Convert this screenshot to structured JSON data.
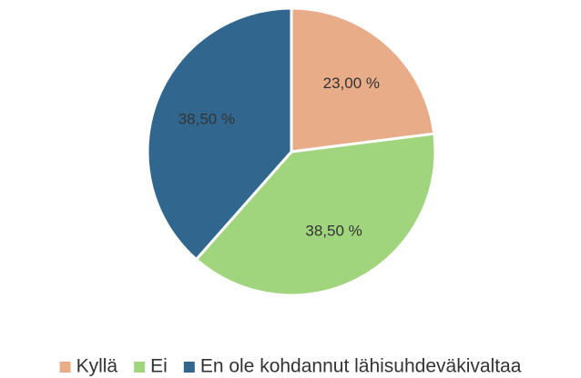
{
  "chart_data": {
    "type": "pie",
    "categories": [
      "Kyllä",
      "Ei",
      "En ole kohdannut lähisuhdeväkivaltaa"
    ],
    "values": [
      23,
      38.5,
      38.5
    ],
    "value_labels": [
      "23,00 %",
      "38,50 %",
      "38,50 %"
    ],
    "colors": [
      "#e8ac88",
      "#a0d57e",
      "#31678f"
    ],
    "legend": "bottom"
  }
}
